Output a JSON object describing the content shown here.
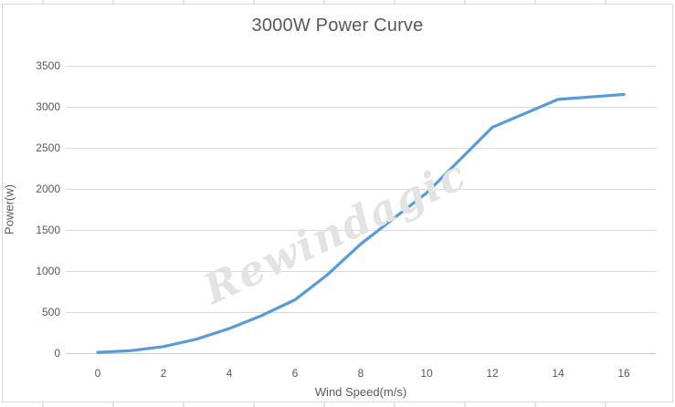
{
  "title": "3000W Power Curve",
  "watermark": {
    "text": "Rewindagic"
  },
  "colors": {
    "line": "#5B9BD5",
    "gridline": "#d9d9d9",
    "zero_axis_line": "#c8c8c8",
    "text": "#595959",
    "watermark": "#e3e3e3",
    "chart_border": "#d9d9d9",
    "worksheet_gridline": "#c9c9c9"
  },
  "chart_data": {
    "type": "line",
    "title": "3000W Power Curve",
    "xlabel": "Wind Speed(m/s)",
    "ylabel": "Power(w)",
    "x": [
      0,
      1,
      2,
      3,
      4,
      5,
      6,
      7,
      8,
      9,
      10,
      11,
      12,
      13,
      14,
      15,
      16
    ],
    "series": [
      {
        "name": "Power",
        "values": [
          10,
          30,
          80,
          170,
          300,
          460,
          650,
          960,
          1330,
          1640,
          1950,
          2350,
          2750,
          2920,
          3090,
          3120,
          3150
        ]
      }
    ],
    "x_ticks": [
      0,
      2,
      4,
      6,
      8,
      10,
      12,
      14,
      16
    ],
    "y_ticks": [
      0,
      500,
      1000,
      1500,
      2000,
      2500,
      3000,
      3500
    ],
    "xlim": [
      0,
      16
    ],
    "ylim": [
      0,
      3500
    ],
    "grid": "horizontal-only",
    "legend": "none",
    "line_color": "#5B9BD5"
  }
}
